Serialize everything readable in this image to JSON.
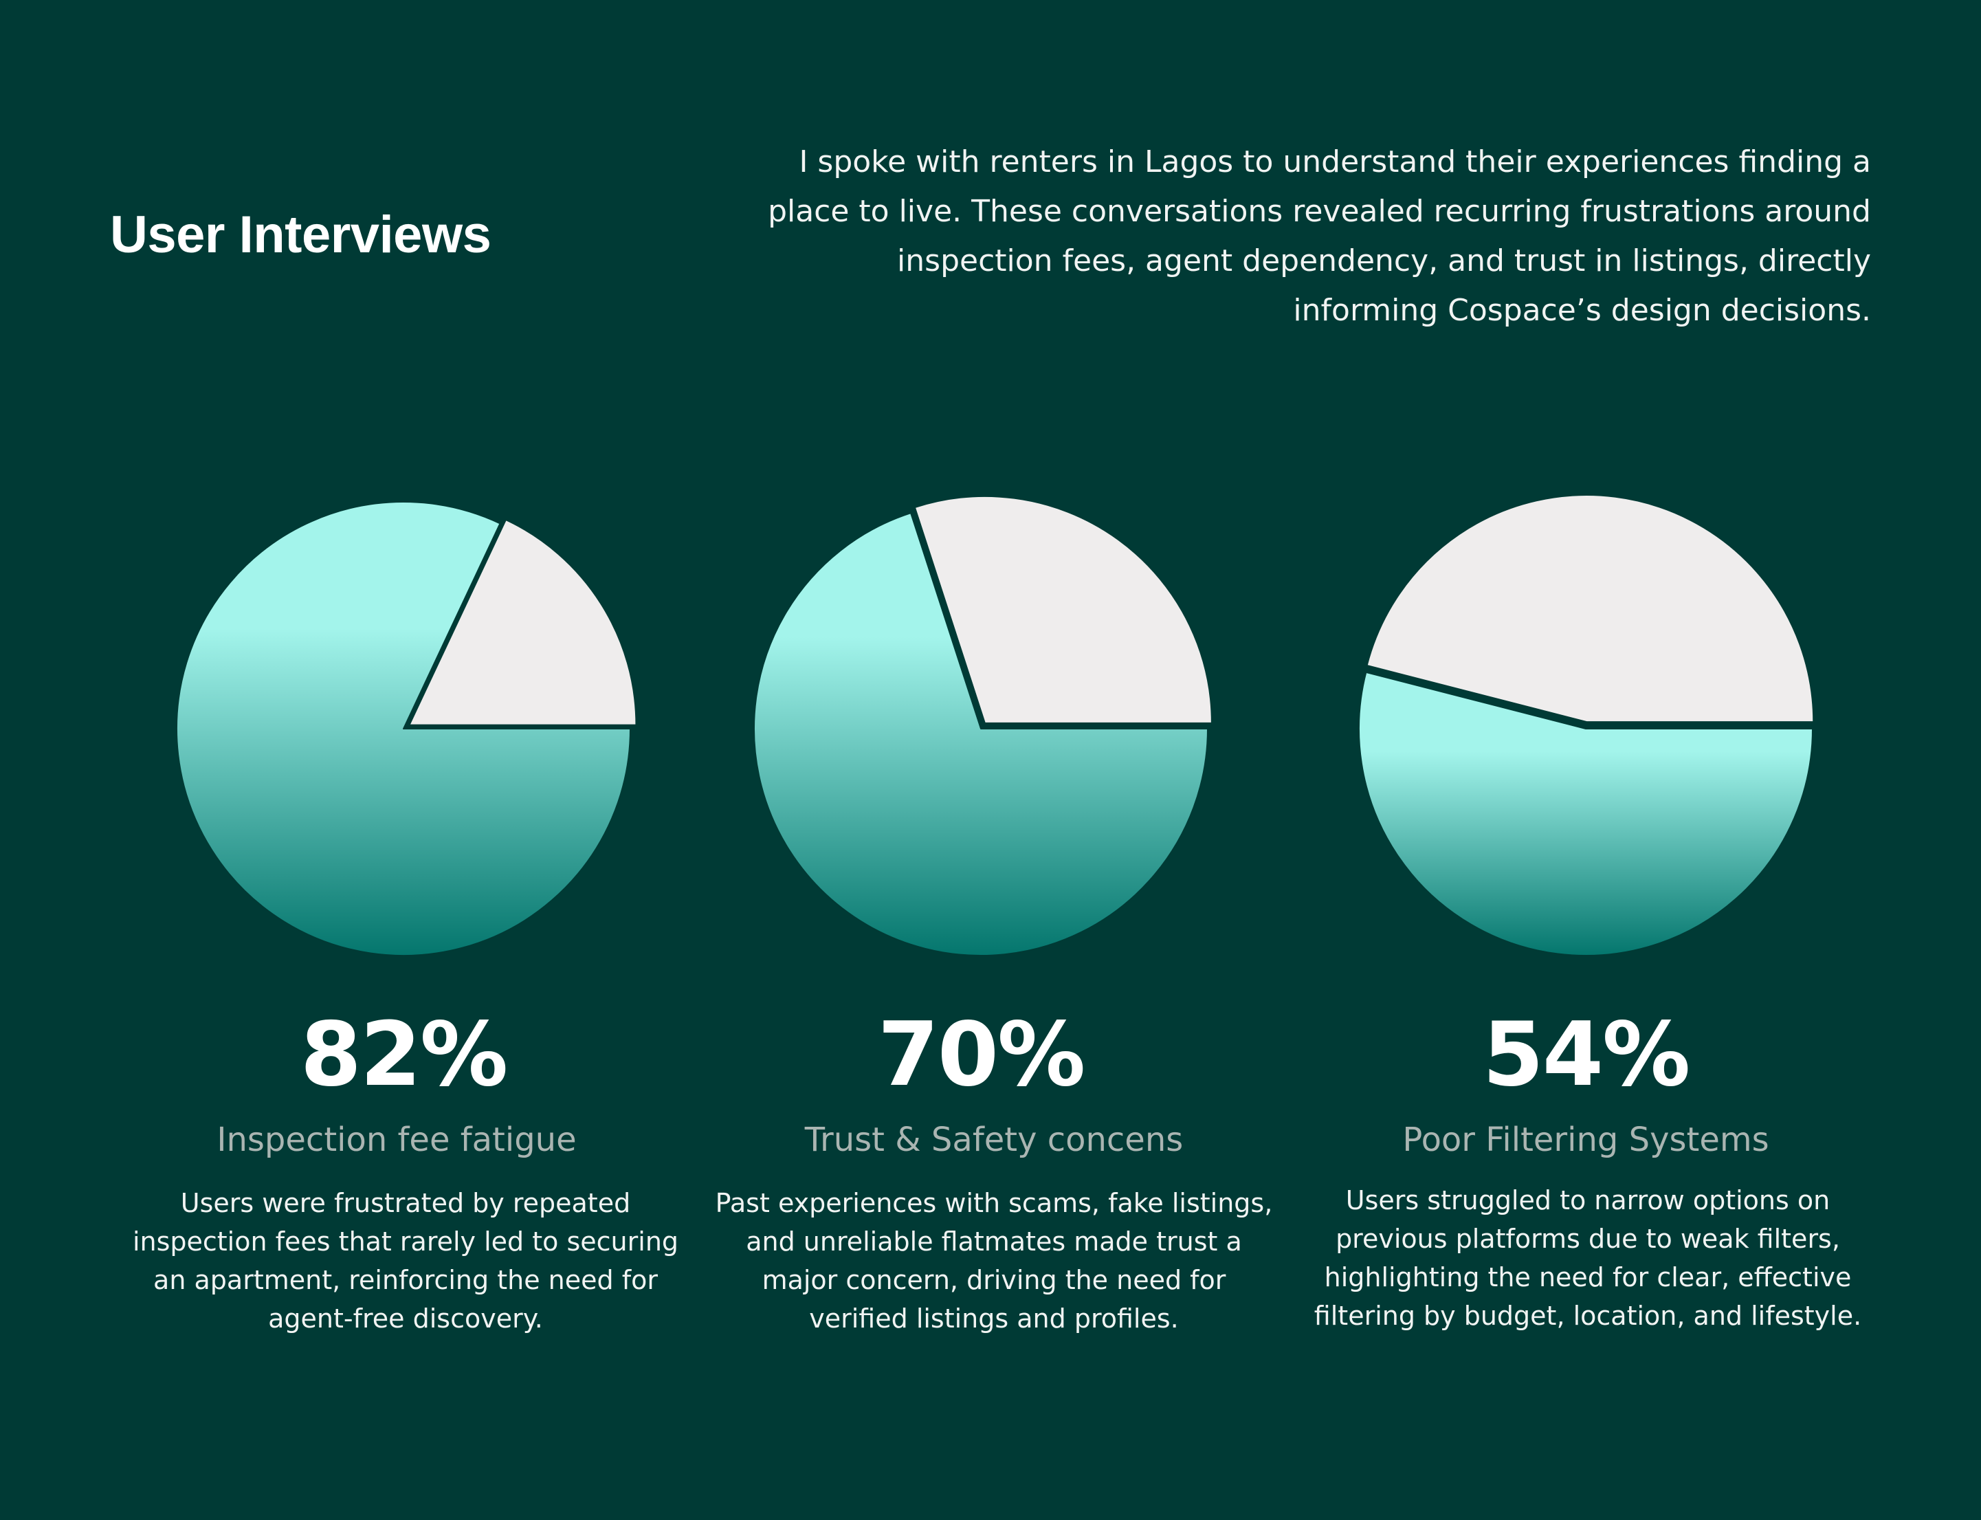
{
  "header": {
    "title": "User Interviews",
    "intro": "I spoke with renters in Lagos to understand their experiences finding a place to live. These conversations revealed recurring frustrations around inspection fees, agent dependency, and trust in listings, directly informing Cospace’s design decisions."
  },
  "colors": {
    "background": "#003a35",
    "slice_gradient_top": "#a3f4eb",
    "slice_gradient_bottom": "#04766d",
    "remainder": "#efeded"
  },
  "chart_data": [
    {
      "type": "pie",
      "values": [
        82,
        18
      ],
      "stat": "82%",
      "label": "Inspection fee fatigue",
      "description": "Users were frustrated by repeated inspection fees that rarely led to securing an apartment, reinforcing the need for agent-free discovery."
    },
    {
      "type": "pie",
      "values": [
        70,
        30
      ],
      "stat": "70%",
      "label": "Trust & Safety concens",
      "description": "Past experiences with scams, fake listings, and unreliable flatmates made trust a major concern, driving the need for verified listings and profiles."
    },
    {
      "type": "pie",
      "values": [
        54,
        46
      ],
      "stat": "54%",
      "label": "Poor Filtering Systems",
      "description": "Users struggled to narrow options on previous platforms due to weak filters, highlighting the need for clear, effective filtering by budget, location, and lifestyle."
    }
  ]
}
